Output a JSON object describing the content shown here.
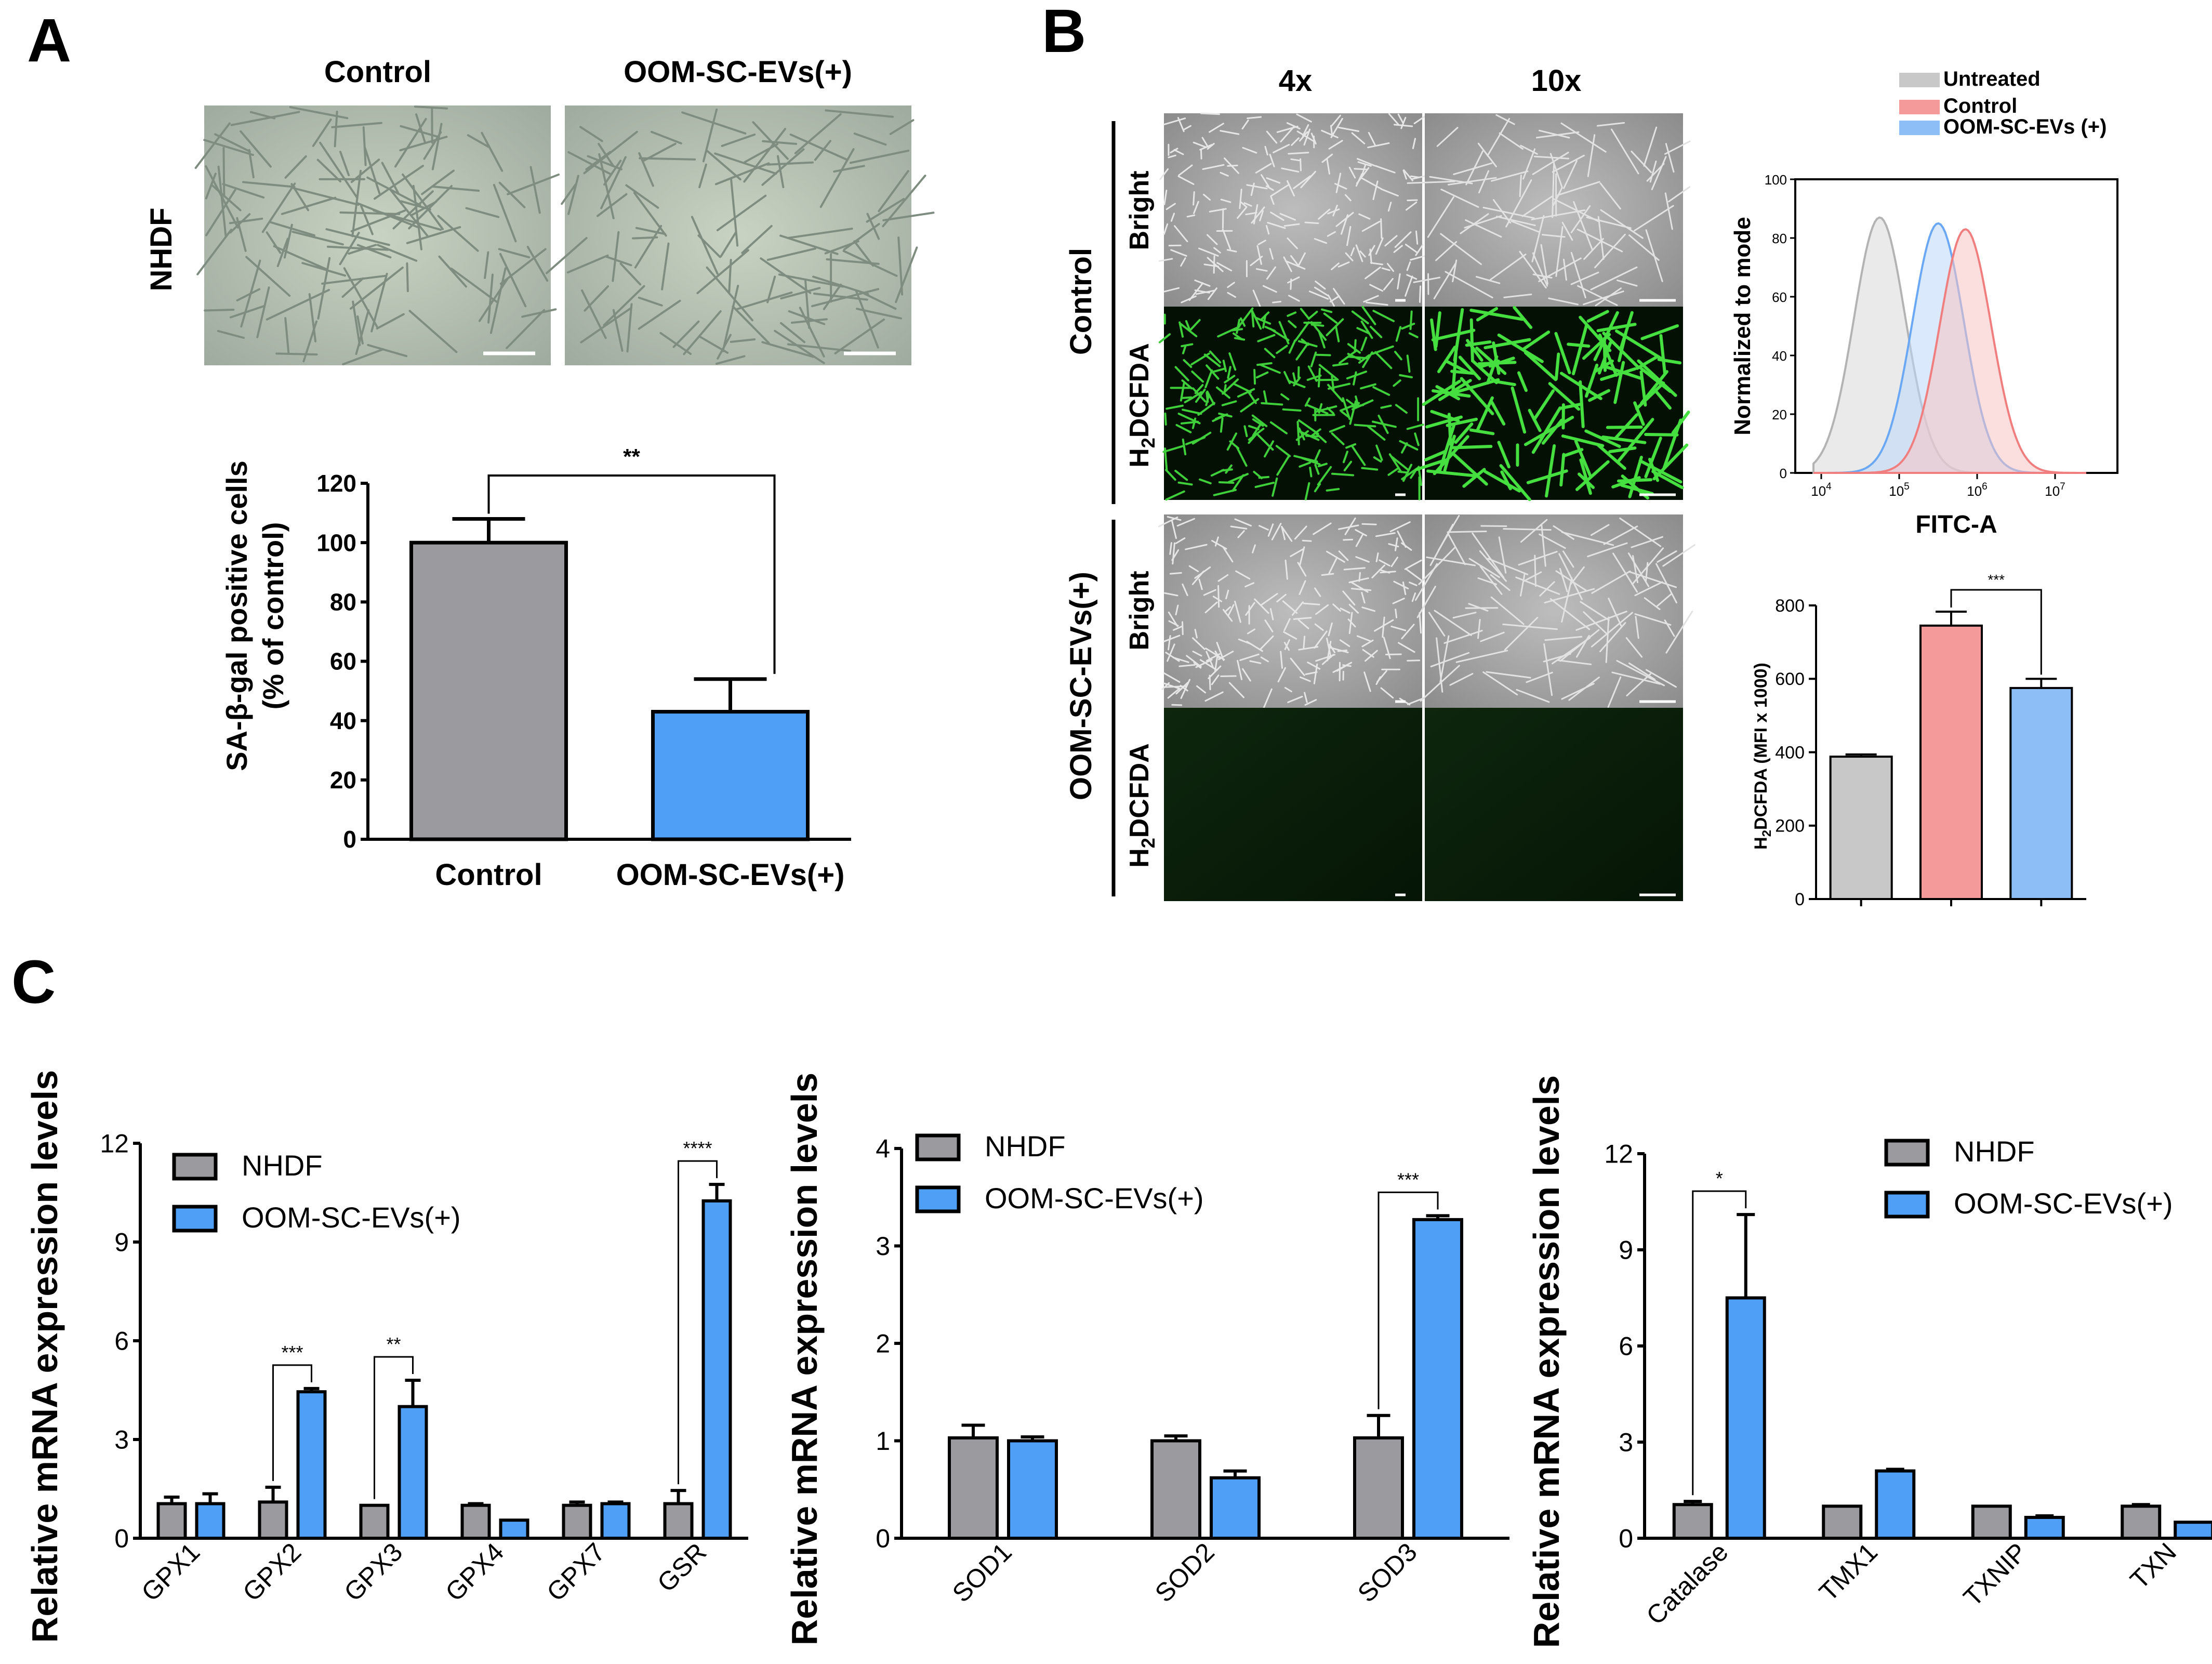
{
  "panel_letters": [
    "A",
    "B",
    "C"
  ],
  "panel_a": {
    "micro_headers": [
      "Control",
      "OOM-SC-EVs(+)"
    ],
    "row_label": "NHDF"
  },
  "panel_b": {
    "magnifications": [
      "4x",
      "10x"
    ],
    "conditions": [
      "Control",
      "OOM-SC-EVs(+)"
    ],
    "channel_bright": "Bright",
    "channel_fluor_prefix": "H",
    "channel_fluor_sub": "2",
    "channel_fluor_suffix": "DCFDA",
    "flow_legend": [
      "Untreated",
      "Control",
      "OOM-SC-EVs (+)"
    ]
  },
  "colors": {
    "gray_bar": "#9b9b9f",
    "blue_bar": "#4f9ff7",
    "untreated": "#c8c8c8",
    "control_red": "#f59a9a",
    "evs_blue": "#8ebef6"
  },
  "chart_data": [
    {
      "id": "A",
      "type": "bar",
      "categories": [
        "Control",
        "OOM-SC-EVs(+)"
      ],
      "values": [
        100,
        43
      ],
      "errors": [
        8,
        11
      ],
      "ylabel": [
        "SA-β-gal positive cells",
        "(% of control)"
      ],
      "ylim": [
        0,
        120
      ],
      "yticks": [
        0,
        20,
        40,
        60,
        80,
        100,
        120
      ],
      "significance": "**",
      "colors": [
        "#9b9b9f",
        "#4f9ff7"
      ]
    },
    {
      "id": "B-flow",
      "type": "area",
      "xlabel": "FITC-A",
      "ylabel": "Normalized to mode",
      "yticks": [
        0,
        20,
        40,
        60,
        80,
        100
      ],
      "xtick_exponents": [
        4,
        5,
        6,
        7
      ],
      "series": [
        {
          "name": "Untreated",
          "peak_x": 4.75,
          "peak_y": 87
        },
        {
          "name": "Control",
          "peak_x": 5.85,
          "peak_y": 83
        },
        {
          "name": "OOM-SC-EVs (+)",
          "peak_x": 5.5,
          "peak_y": 85
        }
      ]
    },
    {
      "id": "B-bar",
      "type": "bar",
      "categories": [
        "Untreated",
        "Control",
        "OOM-SC-EVs (+)"
      ],
      "values": [
        388,
        745,
        575
      ],
      "errors": [
        6,
        38,
        25
      ],
      "ylabel_prefix": "H",
      "ylabel_sub": "2",
      "ylabel_suffix": "DCFDA (MFI x 1000)",
      "ylim": [
        0,
        800
      ],
      "yticks": [
        0,
        200,
        400,
        600,
        800
      ],
      "significance": "***"
    },
    {
      "id": "C1",
      "type": "bar",
      "categories": [
        "GPX1",
        "GPX2",
        "GPX3",
        "GPX4",
        "GPX7",
        "GSR"
      ],
      "series": [
        {
          "name": "NHDF",
          "values": [
            1.05,
            1.1,
            1.0,
            1.0,
            1.0,
            1.05
          ],
          "errors": [
            0.2,
            0.45,
            0.0,
            0.05,
            0.1,
            0.4
          ]
        },
        {
          "name": "OOM-SC-EVs(+)",
          "values": [
            1.05,
            4.45,
            4.0,
            0.55,
            1.05,
            10.25
          ],
          "errors": [
            0.3,
            0.1,
            0.8,
            0.0,
            0.05,
            0.5
          ]
        }
      ],
      "ylabel": "Relative mRNA expression levels",
      "ylim": [
        0,
        12
      ],
      "yticks": [
        0,
        3,
        6,
        9,
        12
      ],
      "significance": [
        {
          "category": "GPX2",
          "label": "***"
        },
        {
          "category": "GPX3",
          "label": "**"
        },
        {
          "category": "GSR",
          "label": "****"
        }
      ]
    },
    {
      "id": "C2",
      "type": "bar",
      "categories": [
        "SOD1",
        "SOD2",
        "SOD3"
      ],
      "series": [
        {
          "name": "NHDF",
          "values": [
            1.03,
            1.0,
            1.03
          ],
          "errors": [
            0.13,
            0.05,
            0.23
          ]
        },
        {
          "name": "OOM-SC-EVs(+)",
          "values": [
            1.0,
            0.62,
            3.27
          ],
          "errors": [
            0.04,
            0.07,
            0.04
          ]
        }
      ],
      "ylabel": "Relative mRNA expression levels",
      "ylim": [
        0,
        4
      ],
      "yticks": [
        0,
        1,
        2,
        3,
        4
      ],
      "significance": [
        {
          "category": "SOD3",
          "label": "***"
        }
      ]
    },
    {
      "id": "C3",
      "type": "bar",
      "categories": [
        "Catalase",
        "TMX1",
        "TXNIP",
        "TXN"
      ],
      "series": [
        {
          "name": "NHDF",
          "values": [
            1.05,
            1.0,
            1.0,
            1.0
          ],
          "errors": [
            0.1,
            0.0,
            0.0,
            0.05
          ]
        },
        {
          "name": "OOM-SC-EVs(+)",
          "values": [
            7.5,
            2.1,
            0.65,
            0.5
          ],
          "errors": [
            2.6,
            0.05,
            0.05,
            0.0
          ]
        }
      ],
      "ylabel": "Relative mRNA expression levels",
      "ylim": [
        0,
        12
      ],
      "yticks": [
        0,
        3,
        6,
        9,
        12
      ],
      "significance": [
        {
          "category": "Catalase",
          "label": "*"
        }
      ]
    }
  ]
}
